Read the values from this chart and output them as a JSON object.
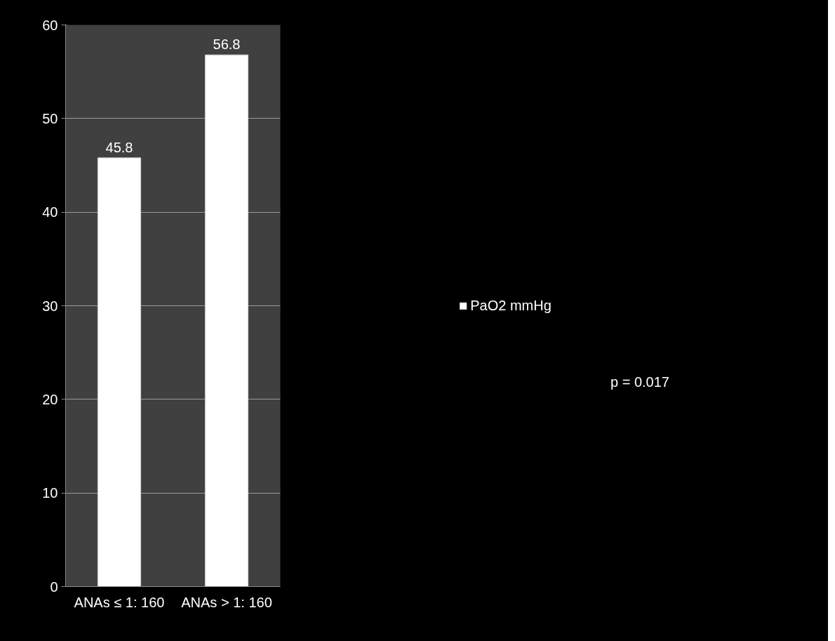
{
  "chart_data": {
    "type": "bar",
    "categories": [
      "ANAs ≤ 1: 160",
      "ANAs > 1: 160"
    ],
    "series": [
      {
        "name": "PaO2 mmHg",
        "color": "#ffffff",
        "values": [
          45.8,
          56.8
        ]
      }
    ],
    "ylim": [
      0,
      60
    ],
    "yticks": [
      0,
      10,
      20,
      30,
      40,
      50,
      60
    ],
    "grid": "y",
    "legend": "right",
    "data_labels": true,
    "annotations": [
      "p = 0.017"
    ]
  }
}
